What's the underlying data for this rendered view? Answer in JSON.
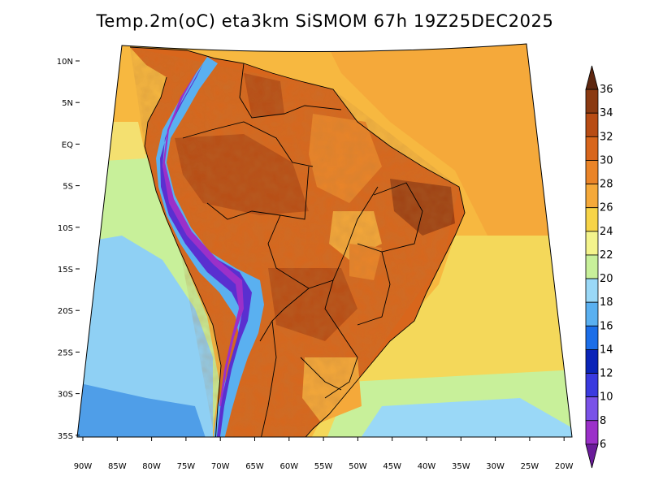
{
  "title": "Temp.2m(oC) eta3km SiSMOM 67h 19Z25DEC2025",
  "lat_labels": [
    "10N",
    "5N",
    "EQ",
    "5S",
    "10S",
    "15S",
    "20S",
    "25S",
    "30S",
    "35S"
  ],
  "lon_labels": [
    "90W",
    "85W",
    "80W",
    "75W",
    "70W",
    "65W",
    "60W",
    "55W",
    "50W",
    "45W",
    "40W",
    "35W",
    "30W",
    "25W",
    "20W"
  ],
  "colorbar": {
    "levels": [
      "6",
      "8",
      "10",
      "12",
      "14",
      "16",
      "18",
      "20",
      "22",
      "24",
      "26",
      "28",
      "30",
      "32",
      "34",
      "36"
    ],
    "colors": [
      "#6a1b9a",
      "#9b30c9",
      "#7a52e8",
      "#3a3adf",
      "#0a24b8",
      "#1c6ee8",
      "#5ab0f0",
      "#9ad8f7",
      "#c8f09a",
      "#f4f48c",
      "#f7d448",
      "#f5a93a",
      "#ea8428",
      "#d8661c",
      "#b84c14",
      "#8b3a12",
      "#5e2710"
    ]
  },
  "colors": {
    "ocean_warm": "#f7b840",
    "ocean_mid": "#f4e070",
    "ocean_cool": "#c8f09a",
    "ocean_cold": "#8fd0f4",
    "ocean_coldest": "#4f9ee8",
    "land_hot": "#d8661c",
    "land_hotter": "#b84c14",
    "andes": "#5a2fd0"
  }
}
